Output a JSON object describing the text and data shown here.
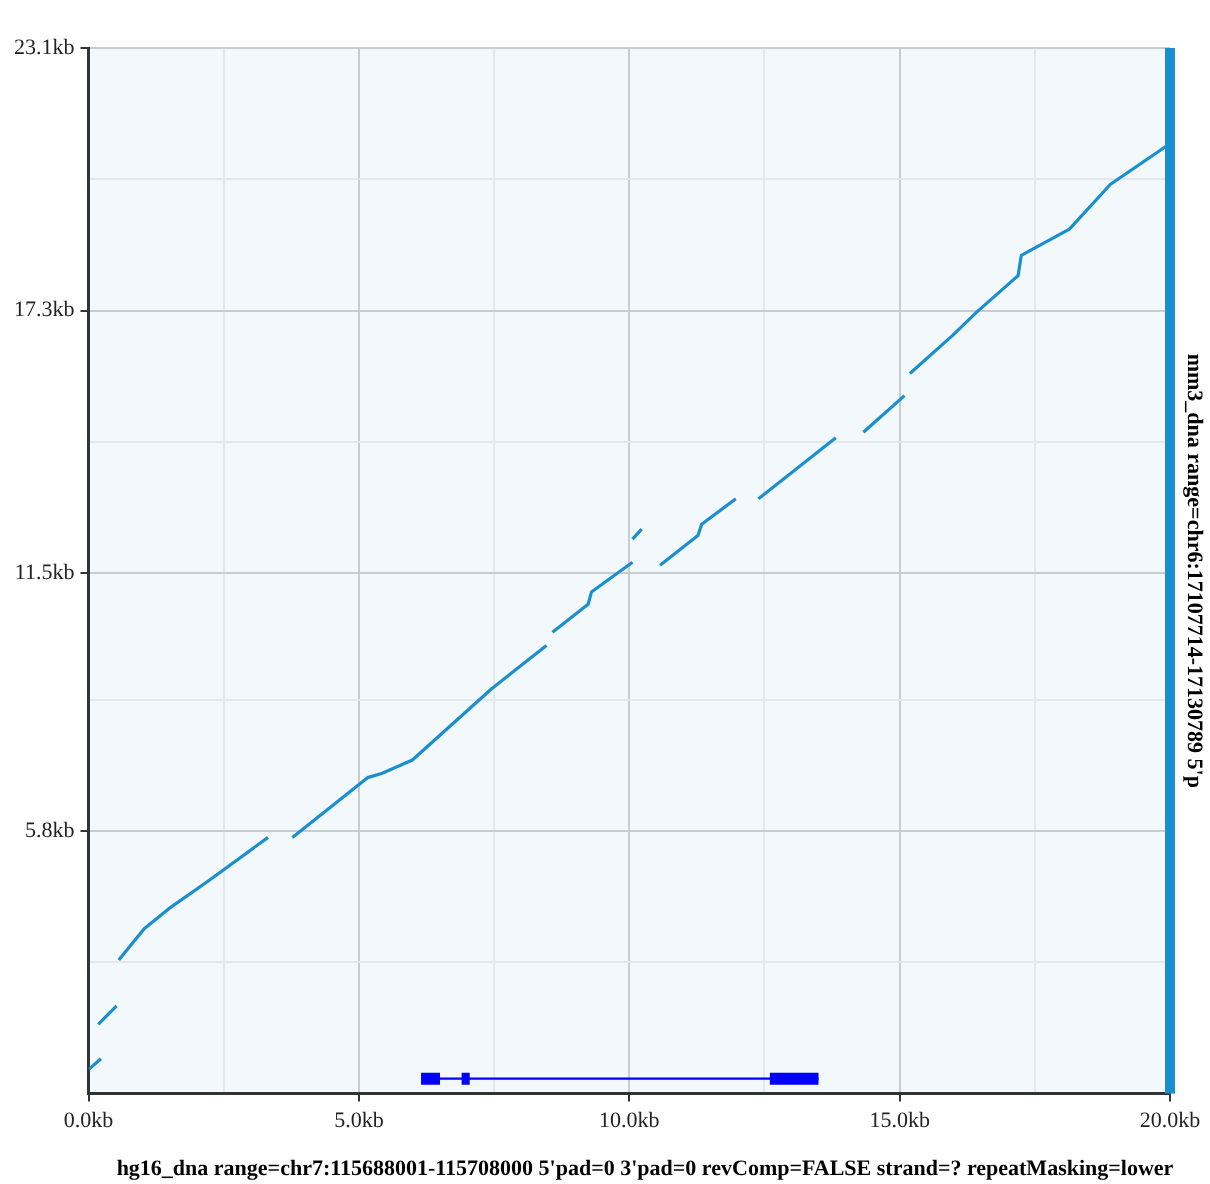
{
  "chart_data": {
    "type": "line",
    "xlabel": "hg16_dna range=chr7:115688001-115708000 5'pad=0 3'pad=0 revComp=FALSE strand=? repeatMasking=lower",
    "ylabel": "mm3_dna range=chr6:17107714-17130789 5'p",
    "xlim": [
      0,
      20
    ],
    "ylim": [
      0,
      23.1
    ],
    "xticks": [
      {
        "value": 0,
        "label": "0.0kb"
      },
      {
        "value": 2.5,
        "label": null
      },
      {
        "value": 5,
        "label": "5.0kb"
      },
      {
        "value": 7.5,
        "label": null
      },
      {
        "value": 10,
        "label": "10.0kb"
      },
      {
        "value": 12.5,
        "label": null
      },
      {
        "value": 15,
        "label": "15.0kb"
      },
      {
        "value": 17.5,
        "label": null
      },
      {
        "value": 20,
        "label": "20.0kb"
      }
    ],
    "yticks": [
      {
        "value": 0,
        "label": null
      },
      {
        "value": 2.9,
        "label": null
      },
      {
        "value": 5.8,
        "label": "5.8kb"
      },
      {
        "value": 8.7,
        "label": null
      },
      {
        "value": 11.5,
        "label": "11.5kb"
      },
      {
        "value": 14.4,
        "label": null
      },
      {
        "value": 17.3,
        "label": "17.3kb"
      },
      {
        "value": 20.2,
        "label": null
      },
      {
        "value": 23.1,
        "label": "23.1kb"
      }
    ],
    "grid": true,
    "marker": "none",
    "line_style": "solid",
    "ref_lines": [
      {
        "axis": "x",
        "value": 20,
        "color": "#1a8fcf"
      }
    ],
    "series": [
      {
        "color": "#1a8fcf",
        "x": [
          0.01,
          0.23
        ],
        "values": [
          0.54,
          0.77
        ]
      },
      {
        "color": "#1a8fcf",
        "x": [
          0.18,
          0.52
        ],
        "values": [
          1.53,
          1.94
        ]
      },
      {
        "color": "#1a8fcf",
        "x": [
          0.56,
          1.03,
          1.48,
          2.24,
          3.32
        ],
        "values": [
          2.95,
          3.64,
          4.08,
          4.72,
          5.66
        ]
      },
      {
        "color": "#1a8fcf",
        "x": [
          3.77,
          5.16,
          5.42,
          5.99,
          7.45,
          8.47
        ],
        "values": [
          5.66,
          6.98,
          7.07,
          7.37,
          8.94,
          9.9
        ]
      },
      {
        "color": "#1a8fcf",
        "x": [
          8.58,
          9.24,
          9.3,
          10.06
        ],
        "values": [
          10.19,
          10.81,
          11.08,
          11.74
        ]
      },
      {
        "color": "#1a8fcf",
        "x": [
          10.06,
          10.23
        ],
        "values": [
          12.25,
          12.47
        ]
      },
      {
        "color": "#1a8fcf",
        "x": [
          10.57,
          11.27,
          11.34,
          11.97
        ],
        "values": [
          11.67,
          12.33,
          12.58,
          13.14
        ]
      },
      {
        "color": "#1a8fcf",
        "x": [
          12.39,
          13.82
        ],
        "values": [
          13.14,
          14.49
        ]
      },
      {
        "color": "#1a8fcf",
        "x": [
          14.33,
          15.09
        ],
        "values": [
          14.61,
          15.42
        ]
      },
      {
        "color": "#1a8fcf",
        "x": [
          15.19,
          15.98,
          16.42,
          17.19,
          17.25,
          18.14,
          18.9,
          19.99
        ],
        "values": [
          15.91,
          16.75,
          17.26,
          18.07,
          18.52,
          19.1,
          20.09,
          20.98
        ]
      },
      {
        "color": "#0000ff",
        "x": [
          6.15,
          13.5
        ],
        "values": [
          0.33,
          0.33
        ]
      },
      {
        "color": "#0000ff",
        "x": [
          6.15,
          6.5
        ],
        "values": [
          0.33,
          0.33
        ]
      },
      {
        "color": "#0000ff",
        "x": [
          6.9,
          7.05
        ],
        "values": [
          0.33,
          0.33
        ]
      },
      {
        "color": "#0000ff",
        "x": [
          12.6,
          13.5
        ],
        "values": [
          0.33,
          0.33
        ]
      }
    ]
  }
}
